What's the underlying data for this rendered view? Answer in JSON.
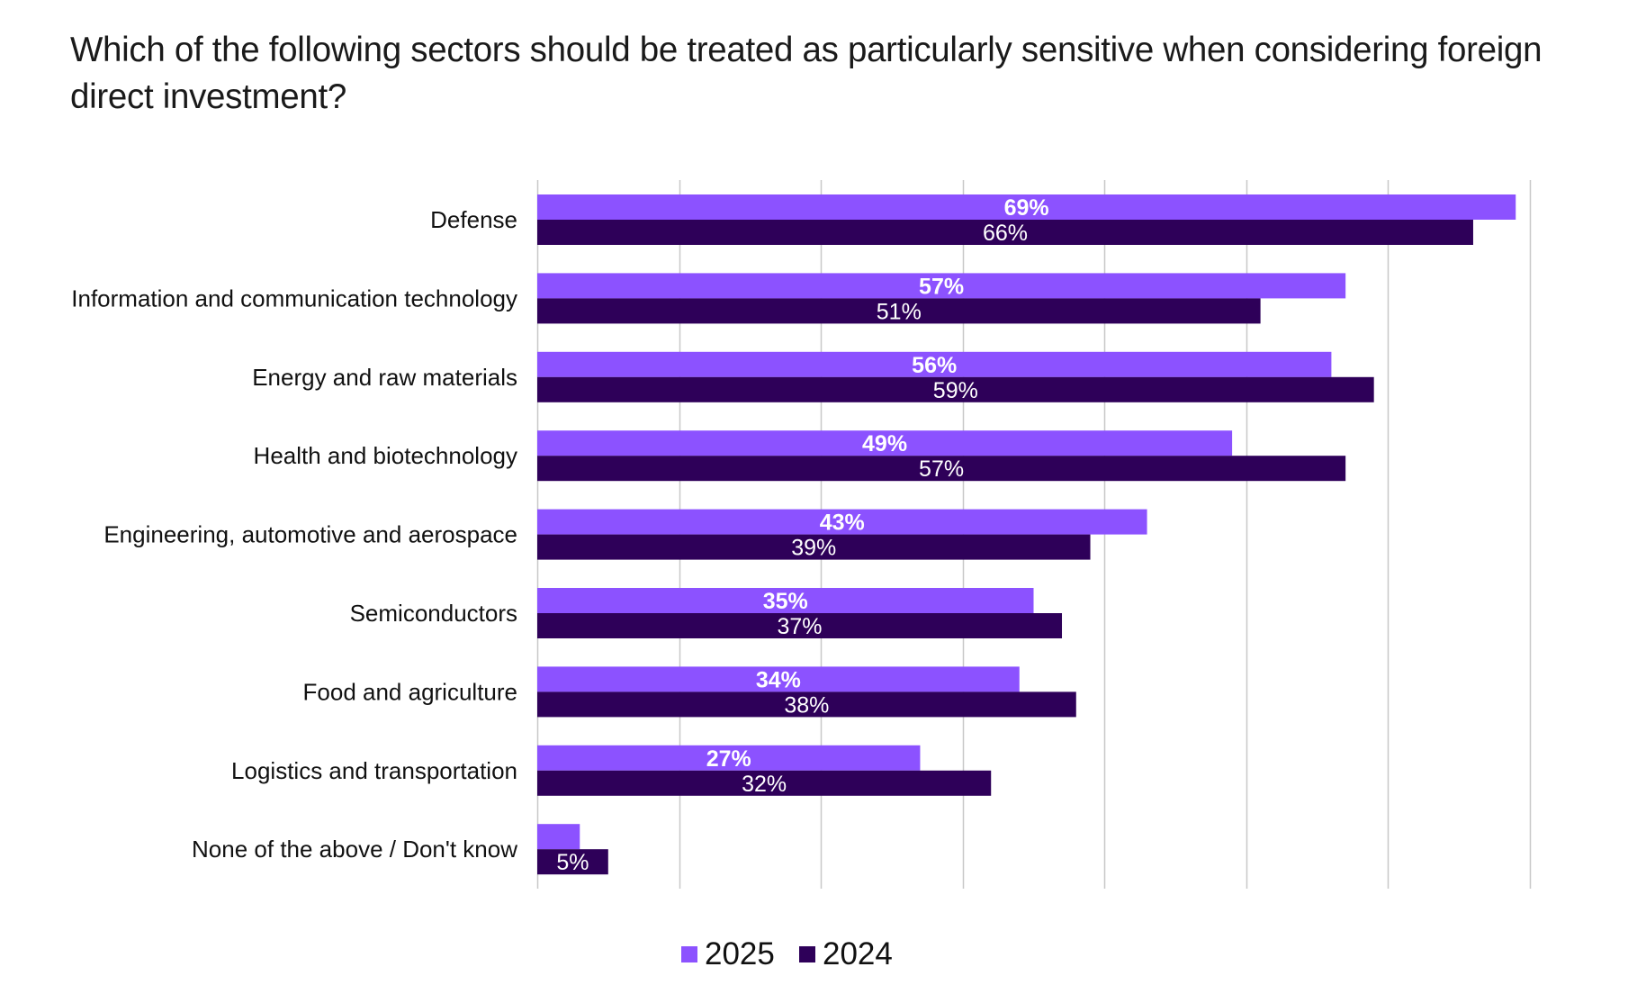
{
  "title": "Which of the following sectors should be treated as particularly sensitive when considering foreign direct investment?",
  "colors": {
    "series_2025": "#8c52ff",
    "series_2024": "#2e0059",
    "gridline": "#c8c8c8",
    "label_text": "#ffffff"
  },
  "chart_data": {
    "type": "bar",
    "orientation": "horizontal",
    "title": "Which of the following sectors should be treated as particularly sensitive when considering foreign direct investment?",
    "xlabel": "",
    "ylabel": "",
    "xlim": [
      0,
      70
    ],
    "unit": "%",
    "grid": true,
    "legend_position": "bottom-center",
    "categories": [
      "Defense",
      "Information and communication technology",
      "Energy and raw materials",
      "Health and biotechnology",
      "Engineering, automotive and aerospace",
      "Semiconductors",
      "Food and agriculture",
      "Logistics and transportation",
      "None of the above / Don't know"
    ],
    "series": [
      {
        "name": "2025",
        "values": [
          69,
          57,
          56,
          49,
          43,
          35,
          34,
          27,
          3
        ],
        "labels": [
          "69%",
          "57%",
          "56%",
          "49%",
          "43%",
          "35%",
          "34%",
          "27%",
          ""
        ]
      },
      {
        "name": "2024",
        "values": [
          66,
          51,
          59,
          57,
          39,
          37,
          38,
          32,
          5
        ],
        "labels": [
          "66%",
          "51%",
          "59%",
          "57%",
          "39%",
          "37%",
          "38%",
          "32%",
          "5%"
        ]
      }
    ]
  },
  "legend": [
    {
      "label": "2025"
    },
    {
      "label": "2024"
    }
  ]
}
